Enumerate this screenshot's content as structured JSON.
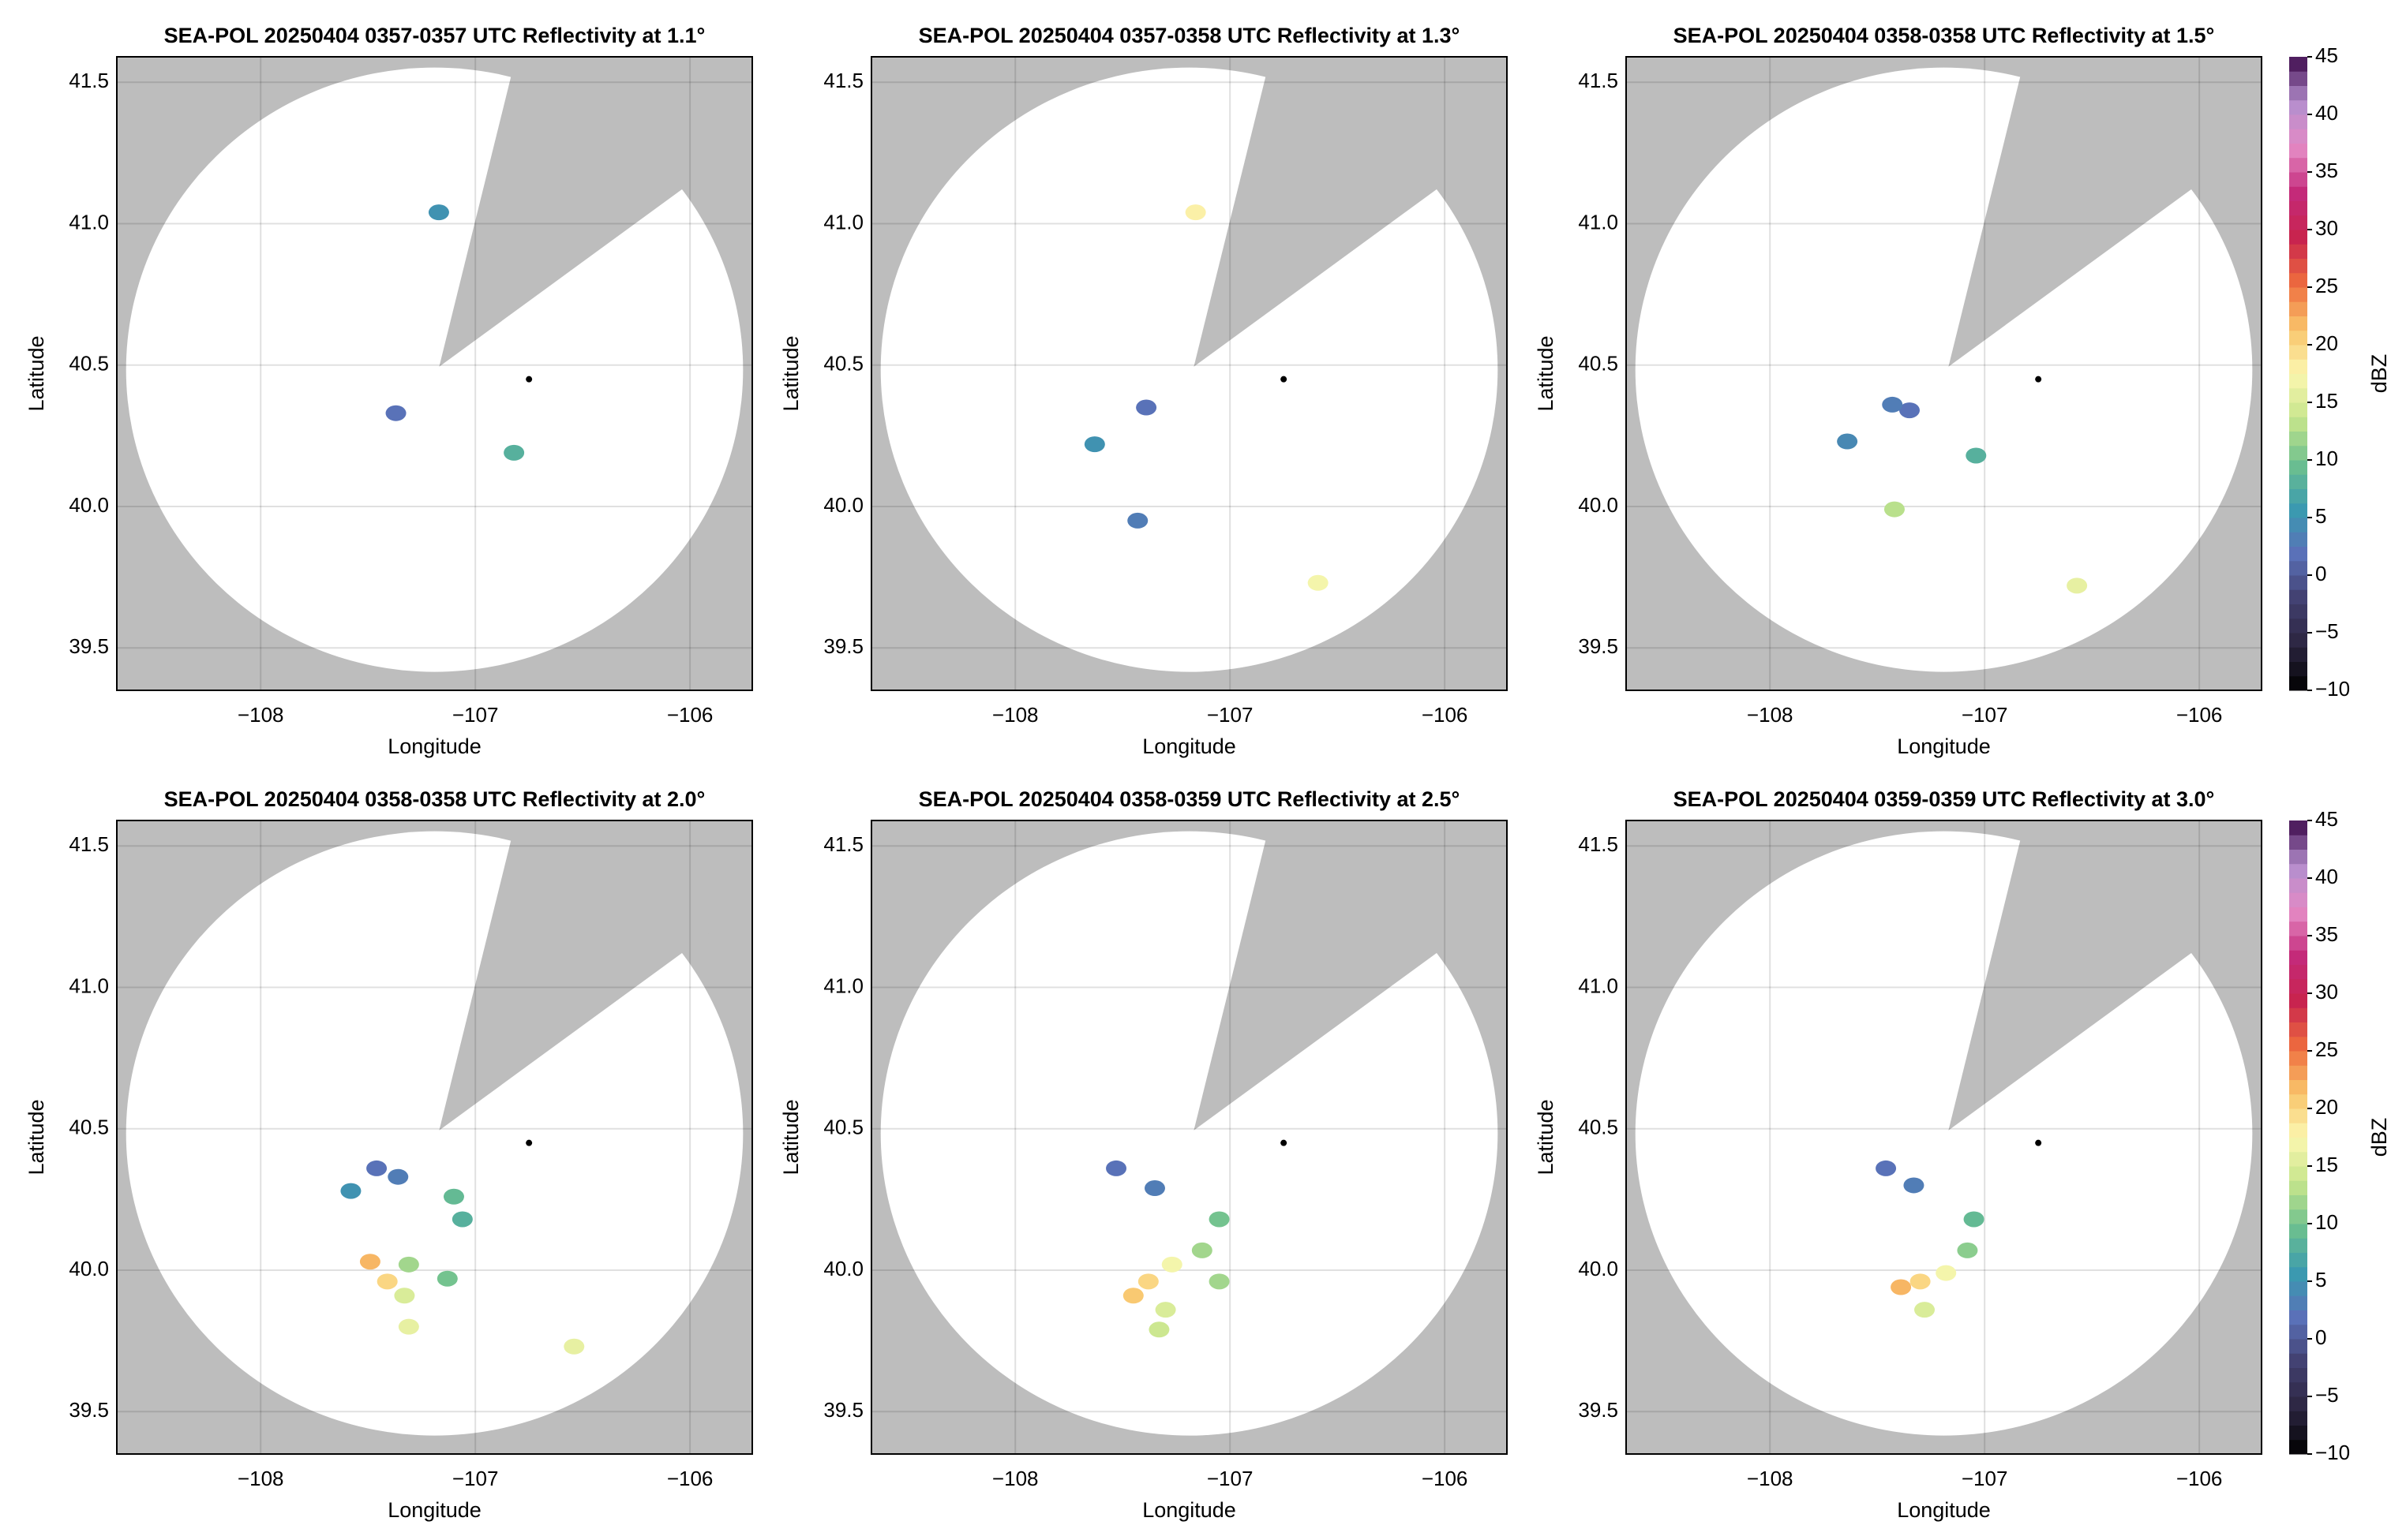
{
  "chart_data": [
    {
      "type": "radar",
      "title": "SEA-POL 20250404 0357-0357 UTC Reflectivity at 1.1°",
      "xlabel": "Longitude",
      "ylabel": "Latitude",
      "xlim": [
        -108.67,
        -105.71
      ],
      "ylim": [
        39.35,
        41.59
      ],
      "xticks": [
        {
          "value": -108,
          "label": "−108"
        },
        {
          "value": -107,
          "label": "−107"
        },
        {
          "value": -106,
          "label": "−106"
        }
      ],
      "yticks": [
        39.5,
        {
          "value": 40,
          "label": "40.0"
        },
        40.5,
        {
          "value": 41,
          "label": "41.0"
        },
        41.5
      ],
      "grid": true,
      "radar_location": {
        "lon": -106.75,
        "lat": 40.45
      },
      "echoes": {
        "lon": [
          -107.37,
          -107.17,
          -106.82
        ],
        "lat": [
          40.33,
          41.04,
          40.19
        ],
        "dbz": [
          2,
          5,
          8
        ]
      }
    },
    {
      "type": "radar",
      "title": "SEA-POL 20250404 0357-0358 UTC Reflectivity at 1.3°",
      "xlabel": "Longitude",
      "ylabel": "Latitude",
      "xlim": [
        -108.67,
        -105.71
      ],
      "ylim": [
        39.35,
        41.59
      ],
      "xticks": [
        {
          "value": -108,
          "label": "−108"
        },
        {
          "value": -107,
          "label": "−107"
        },
        {
          "value": -106,
          "label": "−106"
        }
      ],
      "yticks": [
        39.5,
        {
          "value": 40,
          "label": "40.0"
        },
        40.5,
        {
          "value": 41,
          "label": "41.0"
        },
        41.5
      ],
      "grid": true,
      "radar_location": {
        "lon": -106.75,
        "lat": 40.45
      },
      "echoes": {
        "lon": [
          -107.39,
          -107.16,
          -107.43,
          -107.63,
          -106.59
        ],
        "lat": [
          40.35,
          41.04,
          39.95,
          40.22,
          39.73
        ],
        "dbz": [
          2,
          18,
          3,
          5,
          17
        ]
      }
    },
    {
      "type": "radar",
      "title": "SEA-POL 20250404 0358-0358 UTC Reflectivity at 1.5°",
      "xlabel": "Longitude",
      "ylabel": "Latitude",
      "xlim": [
        -108.67,
        -105.71
      ],
      "ylim": [
        39.35,
        41.59
      ],
      "xticks": [
        {
          "value": -108,
          "label": "−108"
        },
        {
          "value": -107,
          "label": "−107"
        },
        {
          "value": -106,
          "label": "−106"
        }
      ],
      "yticks": [
        39.5,
        {
          "value": 40,
          "label": "40.0"
        },
        40.5,
        {
          "value": 41,
          "label": "41.0"
        },
        41.5
      ],
      "grid": true,
      "radar_location": {
        "lon": -106.75,
        "lat": 40.45
      },
      "echoes": {
        "lon": [
          -107.35,
          -107.43,
          -107.04,
          -107.42,
          -106.57,
          -107.64
        ],
        "lat": [
          40.34,
          40.36,
          40.18,
          39.99,
          39.72,
          40.23
        ],
        "dbz": [
          2,
          3,
          8,
          13,
          16,
          4
        ]
      },
      "colorbar": {
        "label": "dBZ",
        "lim": [
          -10,
          45
        ],
        "ticks": [
          {
            "value": -10,
            "label": "−10"
          },
          {
            "value": -5,
            "label": "−5"
          },
          0,
          5,
          10,
          15,
          20,
          25,
          30,
          35,
          40,
          45
        ],
        "colors": [
          "#000000",
          "#2b2540",
          "#413f6e",
          "#5b70b8",
          "#3a9ab0",
          "#6cc08f",
          "#c6e58c",
          "#fbf7b0",
          "#f9c36a",
          "#ee6b3e",
          "#c8244e",
          "#c42a7a",
          "#e48ac4",
          "#b48fce",
          "#3d0a4b"
        ]
      }
    },
    {
      "type": "radar",
      "title": "SEA-POL 20250404 0358-0358 UTC Reflectivity at 2.0°",
      "xlabel": "Longitude",
      "ylabel": "Latitude",
      "xlim": [
        -108.67,
        -105.71
      ],
      "ylim": [
        39.35,
        41.59
      ],
      "xticks": [
        {
          "value": -108,
          "label": "−108"
        },
        {
          "value": -107,
          "label": "−107"
        },
        {
          "value": -106,
          "label": "−106"
        }
      ],
      "yticks": [
        39.5,
        {
          "value": 40,
          "label": "40.0"
        },
        40.5,
        {
          "value": 41,
          "label": "41.0"
        },
        41.5
      ],
      "grid": true,
      "radar_location": {
        "lon": -106.75,
        "lat": 40.45
      },
      "echoes": {
        "lon": [
          -107.46,
          -107.36,
          -107.58,
          -107.06,
          -107.1,
          -107.31,
          -107.41,
          -107.33,
          -107.13,
          -107.31,
          -106.54,
          -107.49
        ],
        "lat": [
          40.36,
          40.33,
          40.28,
          40.18,
          40.26,
          40.02,
          39.96,
          39.91,
          39.97,
          39.8,
          39.73,
          40.03
        ],
        "dbz": [
          2,
          3,
          5,
          8,
          9,
          12,
          20,
          15,
          10,
          16,
          16,
          22
        ]
      }
    },
    {
      "type": "radar",
      "title": "SEA-POL 20250404 0358-0359 UTC Reflectivity at 2.5°",
      "xlabel": "Longitude",
      "ylabel": "Latitude",
      "xlim": [
        -108.67,
        -105.71
      ],
      "ylim": [
        39.35,
        41.59
      ],
      "xticks": [
        {
          "value": -108,
          "label": "−108"
        },
        {
          "value": -107,
          "label": "−107"
        },
        {
          "value": -106,
          "label": "−106"
        }
      ],
      "yticks": [
        39.5,
        {
          "value": 40,
          "label": "40.0"
        },
        40.5,
        {
          "value": 41,
          "label": "41.0"
        },
        41.5
      ],
      "grid": true,
      "radar_location": {
        "lon": -106.75,
        "lat": 40.45
      },
      "echoes": {
        "lon": [
          -107.53,
          -107.35,
          -107.05,
          -107.13,
          -107.38,
          -107.27,
          -107.3,
          -107.45,
          -107.33,
          -107.05
        ],
        "lat": [
          40.36,
          40.29,
          40.18,
          40.07,
          39.96,
          40.02,
          39.86,
          39.91,
          39.79,
          39.96
        ],
        "dbz": [
          2,
          3,
          10,
          12,
          20,
          17,
          15,
          21,
          14,
          12
        ]
      }
    },
    {
      "type": "radar",
      "title": "SEA-POL 20250404 0359-0359 UTC Reflectivity at 3.0°",
      "xlabel": "Longitude",
      "ylabel": "Latitude",
      "xlim": [
        -108.67,
        -105.71
      ],
      "ylim": [
        39.35,
        41.59
      ],
      "xticks": [
        {
          "value": -108,
          "label": "−108"
        },
        {
          "value": -107,
          "label": "−107"
        },
        {
          "value": -106,
          "label": "−106"
        }
      ],
      "yticks": [
        39.5,
        {
          "value": 40,
          "label": "40.0"
        },
        40.5,
        {
          "value": 41,
          "label": "41.0"
        },
        41.5
      ],
      "grid": true,
      "radar_location": {
        "lon": -106.75,
        "lat": 40.45
      },
      "echoes": {
        "lon": [
          -107.46,
          -107.33,
          -107.05,
          -107.08,
          -107.3,
          -107.18,
          -107.28,
          -107.39
        ],
        "lat": [
          40.36,
          40.3,
          40.18,
          40.07,
          39.96,
          39.99,
          39.86,
          39.94
        ],
        "dbz": [
          2,
          3,
          9,
          11,
          20,
          17,
          15,
          22
        ]
      },
      "colorbar": {
        "label": "dBZ",
        "lim": [
          -10,
          45
        ],
        "ticks": [
          {
            "value": -10,
            "label": "−10"
          },
          {
            "value": -5,
            "label": "−5"
          },
          0,
          5,
          10,
          15,
          20,
          25,
          30,
          35,
          40,
          45
        ],
        "colors": [
          "#000000",
          "#2b2540",
          "#413f6e",
          "#5b70b8",
          "#3a9ab0",
          "#6cc08f",
          "#c6e58c",
          "#fbf7b0",
          "#f9c36a",
          "#ee6b3e",
          "#c8244e",
          "#c42a7a",
          "#e48ac4",
          "#b48fce",
          "#3d0a4b"
        ]
      }
    }
  ]
}
